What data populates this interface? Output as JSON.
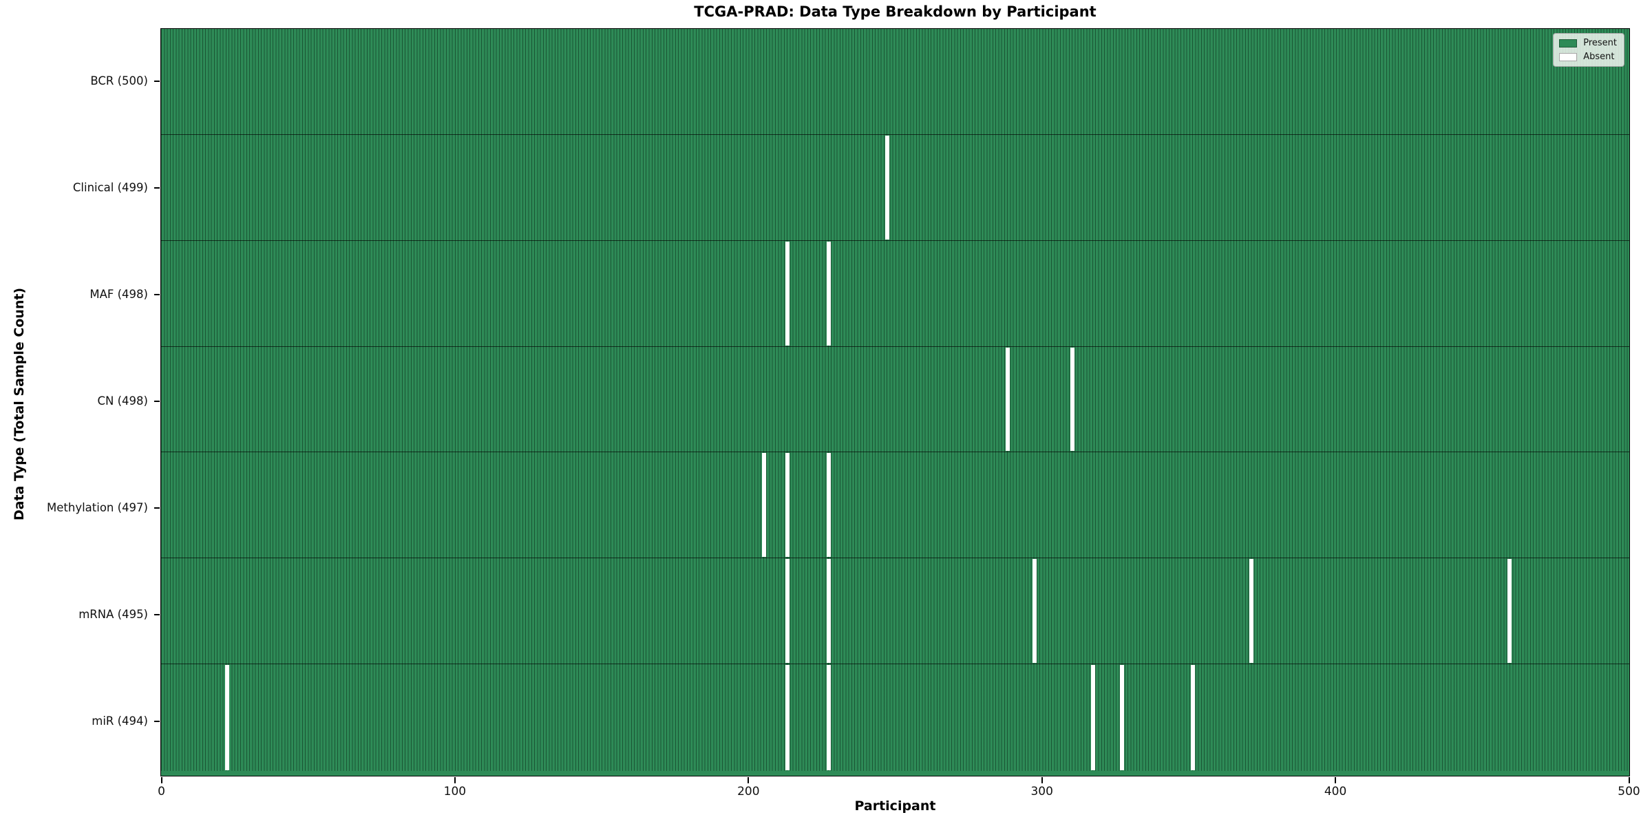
{
  "chart_data": {
    "type": "heatmap",
    "title": "TCGA-PRAD: Data Type Breakdown by Participant",
    "xlabel": "Participant",
    "ylabel": "Data Type (Total Sample Count)",
    "n_participants": 500,
    "xlim": [
      0,
      500
    ],
    "x_ticks": [
      0,
      100,
      200,
      300,
      400,
      500
    ],
    "grid": false,
    "legend": {
      "position": "upper right",
      "entries": [
        {
          "label": "Present",
          "color": "#2e8b57"
        },
        {
          "label": "Absent",
          "color": "#ffffff"
        }
      ]
    },
    "colors": {
      "present": "#2e8b57",
      "absent": "#ffffff",
      "bar_edge": "#1e5c3a",
      "row_divider": "#222222"
    },
    "rows": [
      {
        "label": "BCR (500)",
        "total": 500,
        "absent_participants": []
      },
      {
        "label": "Clinical (499)",
        "total": 499,
        "absent_participants": [
          247
        ]
      },
      {
        "label": "MAF (498)",
        "total": 498,
        "absent_participants": [
          213,
          227
        ]
      },
      {
        "label": "CN (498)",
        "total": 498,
        "absent_participants": [
          288,
          310
        ]
      },
      {
        "label": "Methylation (497)",
        "total": 497,
        "absent_participants": [
          205,
          213,
          227
        ]
      },
      {
        "label": "mRNA (495)",
        "total": 495,
        "absent_participants": [
          213,
          227,
          297,
          371,
          459
        ]
      },
      {
        "label": "miR (494)",
        "total": 494,
        "absent_participants": [
          22,
          213,
          227,
          317,
          327,
          351
        ]
      }
    ]
  }
}
